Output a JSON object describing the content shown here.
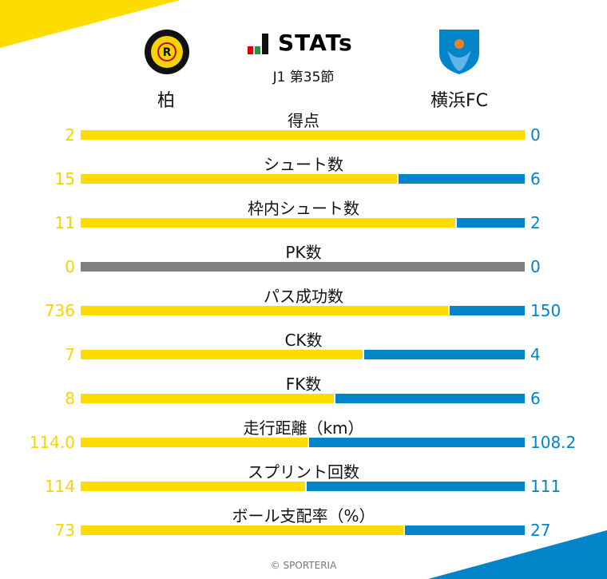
{
  "colors": {
    "home": "#ffdc00",
    "away": "#0284c9",
    "neutral": "#808080"
  },
  "header": {
    "title": "STATs",
    "round": "J1 第35節",
    "home_team": "柏",
    "away_team": "横浜FC"
  },
  "stats": [
    {
      "label": "得点",
      "home": "2",
      "away": "0"
    },
    {
      "label": "シュート数",
      "home": "15",
      "away": "6"
    },
    {
      "label": "枠内シュート数",
      "home": "11",
      "away": "2"
    },
    {
      "label": "PK数",
      "home": "0",
      "away": "0"
    },
    {
      "label": "パス成功数",
      "home": "736",
      "away": "150"
    },
    {
      "label": "CK数",
      "home": "7",
      "away": "4"
    },
    {
      "label": "FK数",
      "home": "8",
      "away": "6"
    },
    {
      "label": "走行距離（km）",
      "home": "114.0",
      "away": "108.2"
    },
    {
      "label": "スプリント回数",
      "home": "114",
      "away": "111"
    },
    {
      "label": "ボール支配率（%）",
      "home": "73",
      "away": "27"
    }
  ],
  "footer": "© SPORTERIA"
}
